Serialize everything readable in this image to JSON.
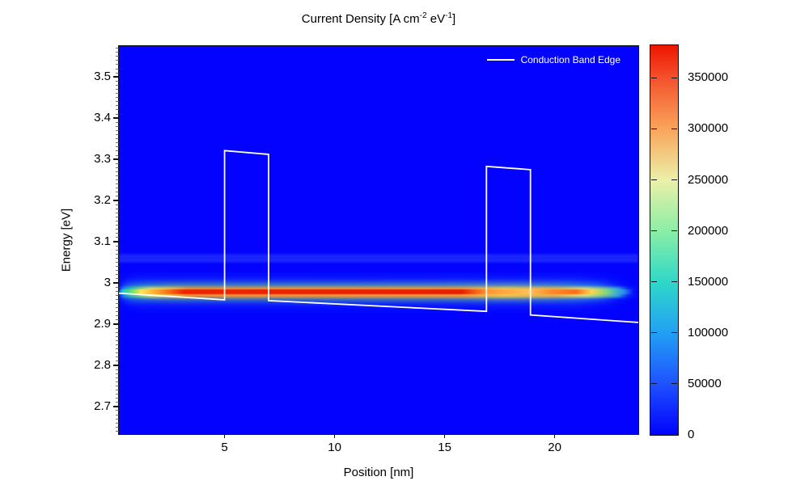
{
  "figure": {
    "title_parts": {
      "t1": "Current Density [A cm",
      "s1": "-2",
      "t2": " eV",
      "s2": "-1",
      "t3": "]"
    }
  },
  "chart_data": {
    "type": "heatmap",
    "title": "Current Density [A cm⁻² eV⁻¹]",
    "xlabel": "Position [nm]",
    "ylabel": "Energy [eV]",
    "xlim": [
      0.2,
      23.8
    ],
    "ylim": [
      2.633,
      3.575
    ],
    "x_ticks": [
      5,
      10,
      15,
      20
    ],
    "y_ticks": [
      2.7,
      2.8,
      2.9,
      3,
      3.1,
      3.2,
      3.3,
      3.4,
      3.5
    ],
    "grid": false,
    "background_value_color": "#0202fe",
    "colorbar": {
      "min": 0,
      "max": 382000,
      "ticks": [
        0,
        50000,
        100000,
        150000,
        200000,
        250000,
        300000,
        350000
      ],
      "colormap": "rainbow (blue-cyan-green-yellow-orange-red)",
      "stops": [
        {
          "value": 0,
          "color": "#0202fe"
        },
        {
          "value": 50000,
          "color": "#1e52ff"
        },
        {
          "value": 100000,
          "color": "#22a0f4"
        },
        {
          "value": 150000,
          "color": "#2fd8c8"
        },
        {
          "value": 200000,
          "color": "#8beea6"
        },
        {
          "value": 250000,
          "color": "#ecf0a8"
        },
        {
          "value": 300000,
          "color": "#f9a45a"
        },
        {
          "value": 350000,
          "color": "#f4512c"
        },
        {
          "value": 382000,
          "color": "#ee1500"
        }
      ]
    },
    "heatmap_features": [
      {
        "name": "main current channel",
        "energy_eV": 2.978,
        "from_nm": 0.3,
        "to_nm": 23.2,
        "description": "intense streak near peak value (~380000) from ~0.7 to ~16 nm, sandy-orange through second barrier, decaying to background by ~23 nm"
      },
      {
        "name": "faint resonance band",
        "energy_eV": 3.06,
        "from_nm": 0.2,
        "to_nm": 23.8,
        "description": "very faint lighter-blue band across the full width"
      }
    ],
    "series": [
      {
        "name": "Conduction Band Edge",
        "color": "#ffffff",
        "points": [
          [
            0.2,
            2.975
          ],
          [
            5.0,
            2.959
          ],
          [
            5.0,
            3.321
          ],
          [
            7.0,
            3.312
          ],
          [
            7.0,
            2.957
          ],
          [
            16.9,
            2.931
          ],
          [
            16.9,
            3.283
          ],
          [
            18.9,
            3.275
          ],
          [
            18.9,
            2.922
          ],
          [
            23.8,
            2.904
          ]
        ]
      }
    ],
    "legend": {
      "position": "top-right",
      "entries": [
        "Conduction Band Edge"
      ]
    }
  }
}
